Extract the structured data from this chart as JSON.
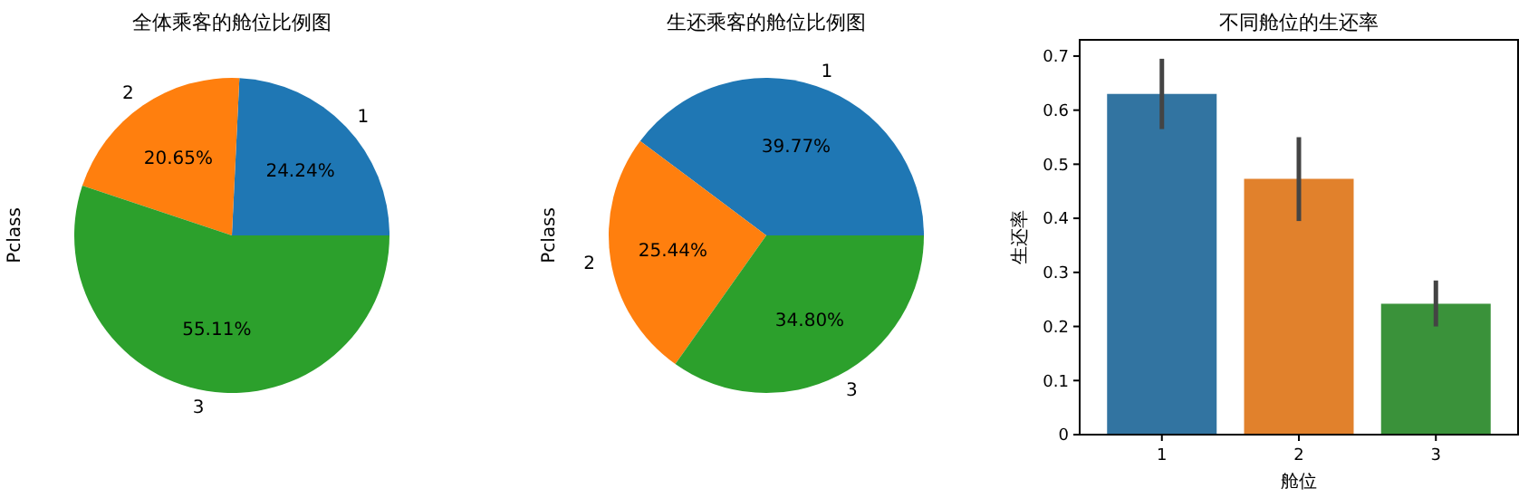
{
  "chart_data": [
    {
      "type": "pie",
      "title": "全体乘客的舱位比例图",
      "ylabel": "Pclass",
      "categories": [
        "1",
        "2",
        "3"
      ],
      "values": [
        24.24,
        20.65,
        55.11
      ],
      "colors": [
        "#1f77b4",
        "#ff7f0e",
        "#2ca02c"
      ],
      "value_labels": [
        "24.24%",
        "20.65%",
        "55.11%"
      ]
    },
    {
      "type": "pie",
      "title": "生还乘客的舱位比例图",
      "ylabel": "Pclass",
      "categories": [
        "1",
        "2",
        "3"
      ],
      "values": [
        39.77,
        25.44,
        34.8
      ],
      "colors": [
        "#1f77b4",
        "#ff7f0e",
        "#2ca02c"
      ],
      "value_labels": [
        "39.77%",
        "25.44%",
        "34.80%"
      ]
    },
    {
      "type": "bar",
      "title": "不同舱位的生还率",
      "xlabel": "舱位",
      "ylabel": "生还率",
      "categories": [
        "1",
        "2",
        "3"
      ],
      "values": [
        0.63,
        0.473,
        0.242
      ],
      "colors": [
        "#3274a1",
        "#e1812c",
        "#3a923a"
      ],
      "errors": [
        [
          0.565,
          0.695
        ],
        [
          0.395,
          0.55
        ],
        [
          0.2,
          0.285
        ]
      ],
      "ylim": [
        0,
        0.73
      ],
      "yticks": [
        0,
        {
          "value": 0.1,
          "label": "0.1"
        },
        {
          "value": 0.2,
          "label": "0.2"
        },
        {
          "value": 0.3,
          "label": "0.3"
        },
        {
          "value": 0.4,
          "label": "0.4"
        },
        {
          "value": 0.5,
          "label": "0.5"
        },
        {
          "value": 0.6,
          "label": "0.6"
        },
        {
          "value": 0.7,
          "label": "0.7"
        }
      ]
    }
  ]
}
